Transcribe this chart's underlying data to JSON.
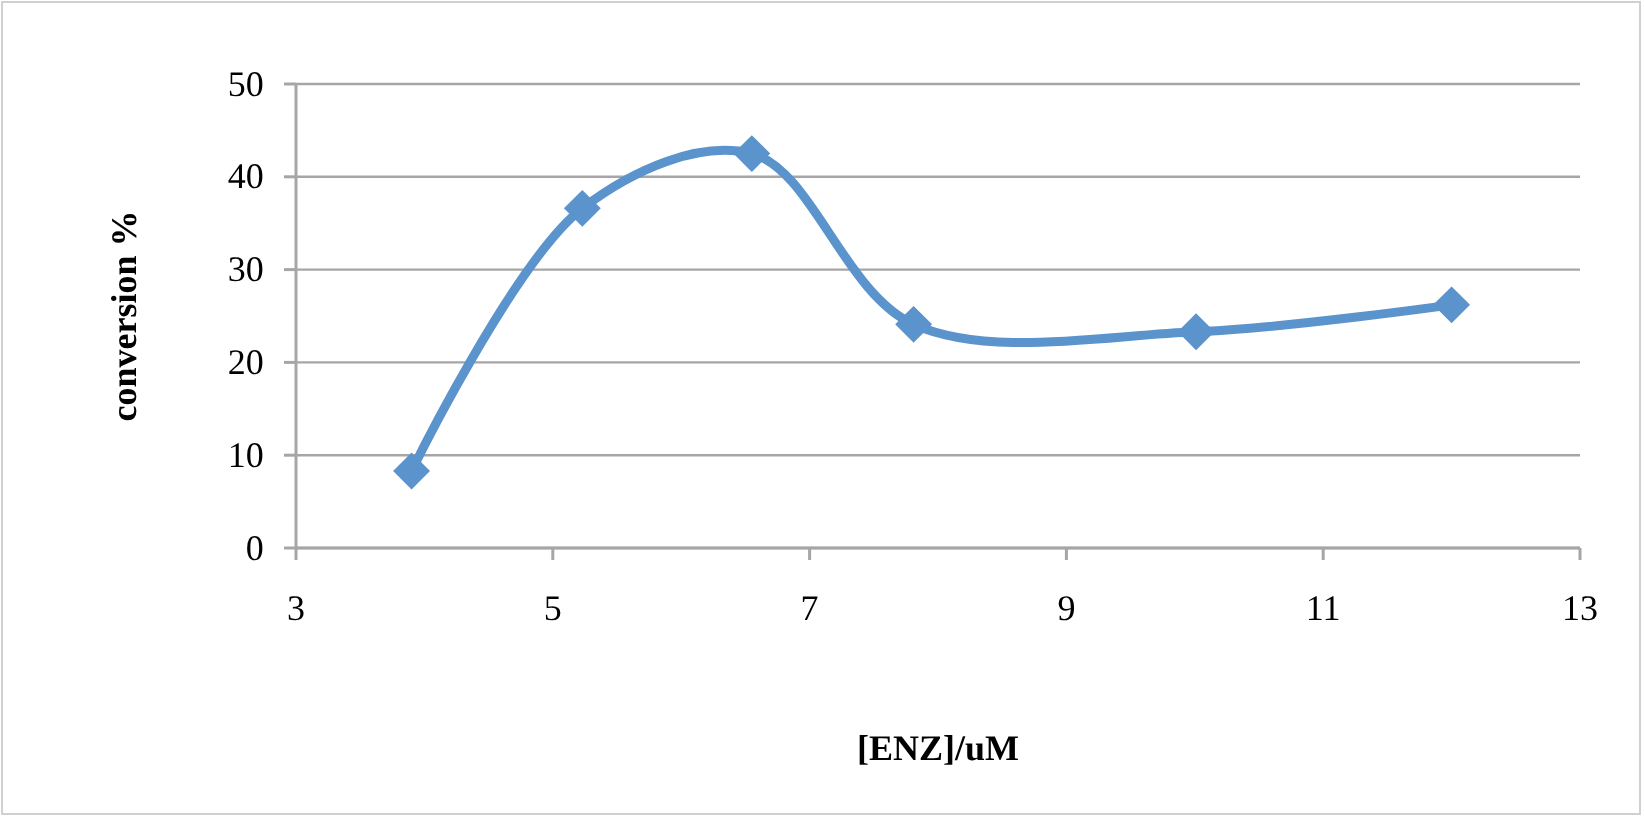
{
  "chart_data": {
    "type": "line",
    "xlabel": "[ENZ]/uM",
    "ylabel": "conversion %",
    "x": [
      3.9,
      5.23,
      6.55,
      7.81,
      10.01,
      12.0
    ],
    "series": [
      {
        "color": "#5b93cc",
        "values": [
          8.3,
          36.6,
          42.5,
          24.1,
          23.3,
          26.2
        ]
      }
    ],
    "xlim": [
      3,
      13
    ],
    "xticks": [
      3,
      5,
      7,
      9,
      11,
      13
    ],
    "ylim": [
      0,
      50
    ],
    "yticks": [
      0,
      10,
      20,
      30,
      40,
      50
    ],
    "grid": "y",
    "marker": "diamond",
    "line_style": "solid"
  }
}
